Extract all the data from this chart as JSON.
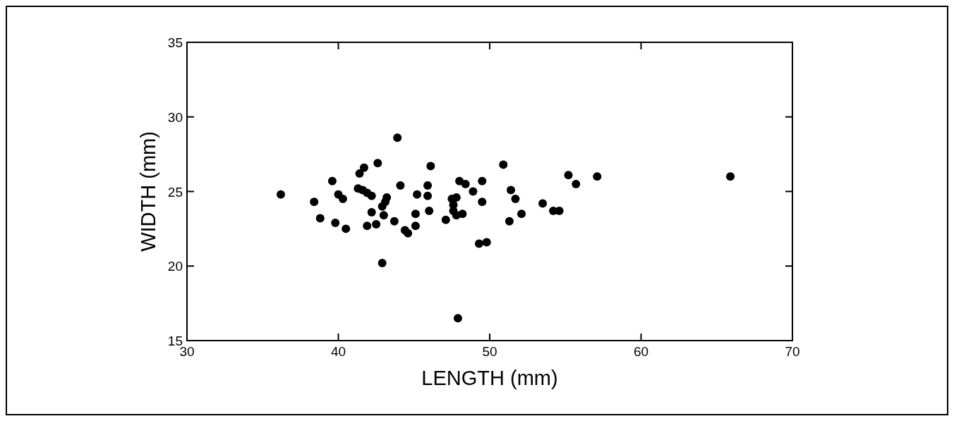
{
  "chart_data": {
    "type": "scatter",
    "xlabel": "LENGTH (mm)",
    "ylabel": "WIDTH (mm)",
    "xlim": [
      30,
      70
    ],
    "xticks": [
      30,
      40,
      50,
      60,
      70
    ],
    "ylim": [
      15,
      35
    ],
    "yticks": [
      15,
      20,
      25,
      30,
      35
    ],
    "grid": false,
    "marker": "circle",
    "series": [
      {
        "color": "#000000",
        "x": [
          36.2,
          38.4,
          38.8,
          39.6,
          39.8,
          40.0,
          40.3,
          40.5,
          41.4,
          41.7,
          41.3,
          41.6,
          41.9,
          42.2,
          41.9,
          42.2,
          42.6,
          42.5,
          43.0,
          43.1,
          43.2,
          42.9,
          42.9,
          43.7,
          43.9,
          44.1,
          44.4,
          44.6,
          45.2,
          45.1,
          45.1,
          45.9,
          45.9,
          46.0,
          46.1,
          47.1,
          47.5,
          47.6,
          47.6,
          47.8,
          47.8,
          48.2,
          48.0,
          48.4,
          48.9,
          49.5,
          49.5,
          49.3,
          49.8,
          50.9,
          51.4,
          51.7,
          51.3,
          52.1,
          53.5,
          54.2,
          54.6,
          55.2,
          55.7,
          57.1,
          47.9,
          65.9
        ],
        "values": [
          24.8,
          24.3,
          23.2,
          25.7,
          22.9,
          24.8,
          24.5,
          22.5,
          26.2,
          26.6,
          25.2,
          25.1,
          24.9,
          24.7,
          22.7,
          23.6,
          26.9,
          22.8,
          23.4,
          24.3,
          24.6,
          24.0,
          20.2,
          23.0,
          28.6,
          25.4,
          22.4,
          22.2,
          24.8,
          23.5,
          22.7,
          25.4,
          24.7,
          23.7,
          26.7,
          23.1,
          24.5,
          24.1,
          23.7,
          24.6,
          23.4,
          23.5,
          25.7,
          25.5,
          25.0,
          25.7,
          24.3,
          21.5,
          21.6,
          26.8,
          25.1,
          24.5,
          23.0,
          23.5,
          24.2,
          23.7,
          23.7,
          26.1,
          25.5,
          26.0,
          16.5,
          26.0
        ]
      }
    ]
  }
}
